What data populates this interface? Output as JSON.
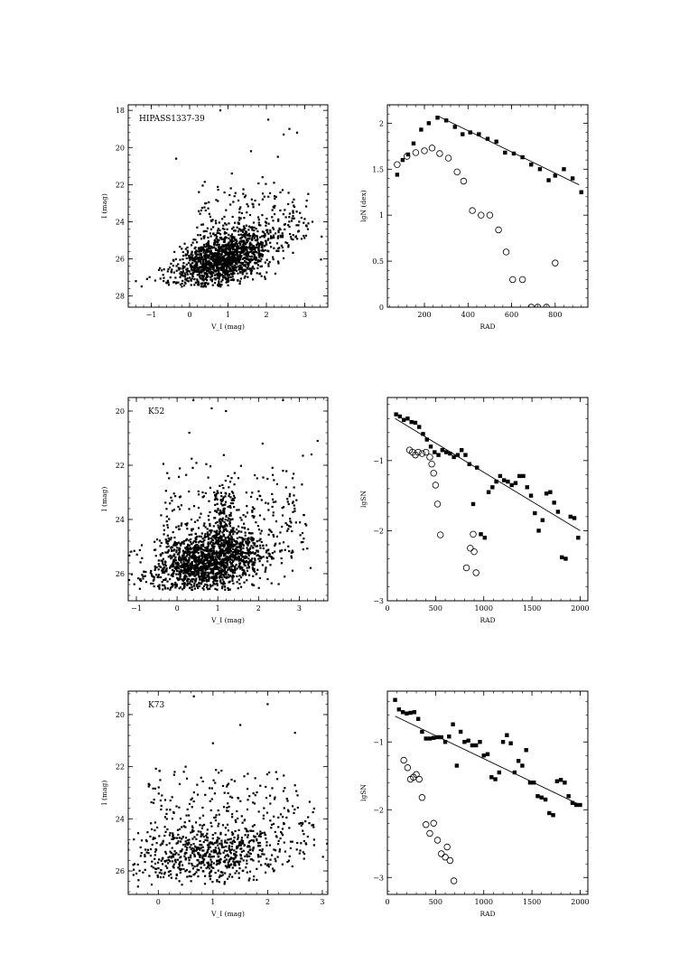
{
  "panels": [
    {
      "id": "cmd1",
      "type": "scatter",
      "subtype": "cmd",
      "label": "HIPASS1337-39",
      "xlabel": "V_I (mag)",
      "ylabel": "I (mag)",
      "xlim": [
        -1.6,
        3.6
      ],
      "ylim": [
        28.6,
        17.7
      ],
      "y_inverted": true,
      "xticks": [
        -1,
        0,
        1,
        2,
        3
      ],
      "yticks": [
        18,
        20,
        22,
        24,
        26,
        28
      ],
      "seed": 11,
      "n_points": 1400,
      "clump": {
        "cx": 0.9,
        "cy": 26.0,
        "sx": 0.55,
        "sy": 0.75,
        "ymin": 24.3,
        "ymax": 27.5,
        "tilt": 0.4
      },
      "spread": {
        "n": 220,
        "xmin": 0.2,
        "xmax": 3.1,
        "ymin": 21.8,
        "ymax": 25.0
      },
      "sparse": [
        [
          0.8,
          18.0
        ],
        [
          2.05,
          18.5
        ],
        [
          2.45,
          19.3
        ],
        [
          2.6,
          19.0
        ],
        [
          2.8,
          19.2
        ],
        [
          -0.35,
          20.6
        ],
        [
          1.6,
          20.2
        ],
        [
          2.3,
          20.5
        ],
        [
          1.1,
          21.4
        ],
        [
          1.9,
          21.6
        ],
        [
          2.2,
          21.9
        ],
        [
          -0.6,
          27.3
        ],
        [
          -0.5,
          27.0
        ],
        [
          -0.8,
          26.6
        ],
        [
          -1.4,
          27.2
        ],
        [
          3.2,
          24.0
        ]
      ]
    },
    {
      "id": "prof1",
      "type": "scatter",
      "subtype": "profile",
      "xlabel": "RAD",
      "ylabel": "lgN (dex)",
      "xlim": [
        30,
        950
      ],
      "ylim": [
        0,
        2.2
      ],
      "xticks": [
        200,
        400,
        600,
        800
      ],
      "yticks": [
        0,
        0.5,
        1,
        1.5,
        2
      ],
      "ytick_labels": [
        "0",
        "0.5",
        "1",
        "1.5",
        "2"
      ],
      "filled": [
        [
          75,
          1.44
        ],
        [
          100,
          1.6
        ],
        [
          125,
          1.66
        ],
        [
          150,
          1.78
        ],
        [
          185,
          1.93
        ],
        [
          220,
          2.0
        ],
        [
          260,
          2.06
        ],
        [
          300,
          2.03
        ],
        [
          340,
          1.96
        ],
        [
          375,
          1.88
        ],
        [
          410,
          1.9
        ],
        [
          450,
          1.88
        ],
        [
          490,
          1.83
        ],
        [
          530,
          1.8
        ],
        [
          570,
          1.68
        ],
        [
          610,
          1.67
        ],
        [
          650,
          1.63
        ],
        [
          690,
          1.55
        ],
        [
          730,
          1.5
        ],
        [
          770,
          1.38
        ],
        [
          800,
          1.43
        ],
        [
          840,
          1.5
        ],
        [
          880,
          1.4
        ],
        [
          920,
          1.25
        ]
      ],
      "open": [
        [
          75,
          1.55
        ],
        [
          120,
          1.64
        ],
        [
          160,
          1.68
        ],
        [
          200,
          1.7
        ],
        [
          235,
          1.73
        ],
        [
          270,
          1.67
        ],
        [
          310,
          1.62
        ],
        [
          350,
          1.47
        ],
        [
          380,
          1.37
        ],
        [
          420,
          1.05
        ],
        [
          460,
          1.0
        ],
        [
          500,
          1.0
        ],
        [
          540,
          0.84
        ],
        [
          575,
          0.6
        ],
        [
          605,
          0.3
        ],
        [
          650,
          0.3
        ],
        [
          690,
          0.0
        ],
        [
          720,
          0.0
        ],
        [
          760,
          0.0
        ],
        [
          800,
          0.48
        ]
      ],
      "fit": [
        [
          260,
          2.08
        ],
        [
          910,
          1.33
        ]
      ]
    },
    {
      "id": "cmd2",
      "type": "scatter",
      "subtype": "cmd",
      "label": "K52",
      "xlabel": "V_I (mag)",
      "ylabel": "I (mag)",
      "xlim": [
        -1.2,
        3.7
      ],
      "ylim": [
        27.0,
        19.5
      ],
      "y_inverted": true,
      "xticks": [
        -1,
        0,
        1,
        2,
        3
      ],
      "yticks": [
        20,
        22,
        24,
        26
      ],
      "seed": 29,
      "n_points": 1500,
      "clump": {
        "cx": 0.7,
        "cy": 25.6,
        "sx": 0.65,
        "sy": 0.6,
        "ymin": 24.2,
        "ymax": 26.6,
        "tilt": 0.3
      },
      "spread": {
        "n": 330,
        "xmin": -0.4,
        "xmax": 3.2,
        "ymin": 21.5,
        "ymax": 25.5
      },
      "vertical": {
        "n": 130,
        "xmin": 0.9,
        "xmax": 1.4,
        "ymin": 23.0,
        "ymax": 25.0
      },
      "sparse": [
        [
          0.4,
          19.6
        ],
        [
          0.85,
          19.9
        ],
        [
          1.2,
          20.0
        ],
        [
          2.6,
          19.6
        ],
        [
          3.45,
          21.1
        ],
        [
          3.3,
          21.6
        ],
        [
          -0.6,
          26.1
        ],
        [
          -0.9,
          26.2
        ],
        [
          0.3,
          20.8
        ],
        [
          2.1,
          21.2
        ]
      ]
    },
    {
      "id": "prof2",
      "type": "scatter",
      "subtype": "profile",
      "xlabel": "RAD",
      "ylabel": "lgSN",
      "xlim": [
        0,
        2080
      ],
      "ylim": [
        -3,
        -0.1
      ],
      "xticks": [
        0,
        500,
        1000,
        1500,
        2000
      ],
      "yticks": [
        -3,
        -2,
        -1
      ],
      "ytick_labels": [
        "−3",
        "−2",
        "−1"
      ],
      "filled": [
        [
          90,
          -0.34
        ],
        [
          130,
          -0.37
        ],
        [
          170,
          -0.42
        ],
        [
          210,
          -0.4
        ],
        [
          250,
          -0.45
        ],
        [
          290,
          -0.46
        ],
        [
          330,
          -0.52
        ],
        [
          370,
          -0.62
        ],
        [
          410,
          -0.7
        ],
        [
          450,
          -0.8
        ],
        [
          490,
          -0.88
        ],
        [
          530,
          -0.92
        ],
        [
          570,
          -0.85
        ],
        [
          610,
          -0.88
        ],
        [
          650,
          -0.9
        ],
        [
          690,
          -0.95
        ],
        [
          730,
          -0.92
        ],
        [
          770,
          -0.85
        ],
        [
          810,
          -0.92
        ],
        [
          850,
          -1.05
        ],
        [
          890,
          -1.62
        ],
        [
          930,
          -1.1
        ],
        [
          970,
          -2.05
        ],
        [
          1010,
          -2.1
        ],
        [
          1050,
          -1.45
        ],
        [
          1090,
          -1.38
        ],
        [
          1130,
          -1.3
        ],
        [
          1170,
          -1.22
        ],
        [
          1210,
          -1.28
        ],
        [
          1250,
          -1.3
        ],
        [
          1290,
          -1.35
        ],
        [
          1330,
          -1.32
        ],
        [
          1370,
          -1.22
        ],
        [
          1410,
          -1.22
        ],
        [
          1450,
          -1.38
        ],
        [
          1490,
          -1.5
        ],
        [
          1530,
          -1.75
        ],
        [
          1570,
          -2.0
        ],
        [
          1610,
          -1.85
        ],
        [
          1650,
          -1.47
        ],
        [
          1690,
          -1.45
        ],
        [
          1730,
          -1.6
        ],
        [
          1770,
          -1.73
        ],
        [
          1810,
          -2.38
        ],
        [
          1850,
          -2.4
        ],
        [
          1900,
          -1.8
        ],
        [
          1940,
          -1.82
        ],
        [
          1980,
          -2.1
        ]
      ],
      "open": [
        [
          230,
          -0.85
        ],
        [
          260,
          -0.88
        ],
        [
          290,
          -0.92
        ],
        [
          320,
          -0.88
        ],
        [
          360,
          -0.9
        ],
        [
          400,
          -0.88
        ],
        [
          440,
          -0.95
        ],
        [
          460,
          -1.05
        ],
        [
          480,
          -1.18
        ],
        [
          500,
          -1.35
        ],
        [
          520,
          -1.62
        ],
        [
          550,
          -2.06
        ],
        [
          820,
          -2.53
        ],
        [
          860,
          -2.25
        ],
        [
          890,
          -2.05
        ],
        [
          900,
          -2.3
        ],
        [
          920,
          -2.6
        ]
      ],
      "fit": [
        [
          80,
          -0.4
        ],
        [
          2000,
          -2.0
        ]
      ]
    },
    {
      "id": "cmd3",
      "type": "scatter",
      "subtype": "cmd",
      "label": "K73",
      "xlabel": "V_I (mag)",
      "ylabel": "I (mag)",
      "xlim": [
        -0.55,
        3.1
      ],
      "ylim": [
        26.9,
        19.1
      ],
      "y_inverted": true,
      "xticks": [
        0,
        1,
        2,
        3
      ],
      "yticks": [
        20,
        22,
        24,
        26
      ],
      "seed": 47,
      "n_points": 620,
      "clump": {
        "cx": 0.9,
        "cy": 25.4,
        "sx": 0.7,
        "sy": 0.55,
        "ymin": 24.1,
        "ymax": 26.6,
        "tilt": 0.3
      },
      "spread": {
        "n": 260,
        "xmin": -0.2,
        "xmax": 2.9,
        "ymin": 22.0,
        "ymax": 25.0
      },
      "sparse": [
        [
          0.65,
          19.3
        ],
        [
          2.0,
          19.6
        ],
        [
          1.0,
          21.1
        ],
        [
          1.5,
          20.4
        ],
        [
          2.5,
          20.7
        ],
        [
          0.3,
          22.2
        ],
        [
          0.5,
          22.0
        ],
        [
          2.85,
          24.8
        ],
        [
          -0.4,
          26.1
        ]
      ]
    },
    {
      "id": "prof3",
      "type": "scatter",
      "subtype": "profile",
      "xlabel": "RAD",
      "ylabel": "lgSN",
      "xlim": [
        0,
        2080
      ],
      "ylim": [
        -3.25,
        -0.25
      ],
      "xticks": [
        0,
        500,
        1000,
        1500,
        2000
      ],
      "yticks": [
        -3,
        -2,
        -1
      ],
      "ytick_labels": [
        "−3",
        "−2",
        "−1"
      ],
      "filled": [
        [
          80,
          -0.38
        ],
        [
          120,
          -0.52
        ],
        [
          160,
          -0.56
        ],
        [
          200,
          -0.58
        ],
        [
          240,
          -0.57
        ],
        [
          280,
          -0.56
        ],
        [
          320,
          -0.66
        ],
        [
          360,
          -0.85
        ],
        [
          400,
          -0.95
        ],
        [
          440,
          -0.95
        ],
        [
          480,
          -0.94
        ],
        [
          520,
          -0.93
        ],
        [
          560,
          -0.93
        ],
        [
          600,
          -1.0
        ],
        [
          640,
          -0.92
        ],
        [
          680,
          -0.74
        ],
        [
          720,
          -1.35
        ],
        [
          760,
          -0.85
        ],
        [
          800,
          -1.0
        ],
        [
          840,
          -0.98
        ],
        [
          880,
          -1.05
        ],
        [
          920,
          -1.05
        ],
        [
          960,
          -1.0
        ],
        [
          1000,
          -1.2
        ],
        [
          1040,
          -1.18
        ],
        [
          1080,
          -1.52
        ],
        [
          1120,
          -1.55
        ],
        [
          1160,
          -1.45
        ],
        [
          1200,
          -1.0
        ],
        [
          1240,
          -0.9
        ],
        [
          1280,
          -1.02
        ],
        [
          1320,
          -1.45
        ],
        [
          1360,
          -1.28
        ],
        [
          1400,
          -1.35
        ],
        [
          1440,
          -1.12
        ],
        [
          1480,
          -1.6
        ],
        [
          1520,
          -1.6
        ],
        [
          1560,
          -1.8
        ],
        [
          1600,
          -1.82
        ],
        [
          1640,
          -1.85
        ],
        [
          1680,
          -2.05
        ],
        [
          1720,
          -2.08
        ],
        [
          1760,
          -1.58
        ],
        [
          1800,
          -1.56
        ],
        [
          1840,
          -1.6
        ],
        [
          1880,
          -1.8
        ],
        [
          1920,
          -1.9
        ],
        [
          1960,
          -1.93
        ],
        [
          2000,
          -1.93
        ]
      ],
      "open": [
        [
          170,
          -1.27
        ],
        [
          210,
          -1.38
        ],
        [
          240,
          -1.55
        ],
        [
          270,
          -1.52
        ],
        [
          300,
          -1.48
        ],
        [
          330,
          -1.55
        ],
        [
          360,
          -1.82
        ],
        [
          400,
          -2.22
        ],
        [
          440,
          -2.35
        ],
        [
          480,
          -2.2
        ],
        [
          520,
          -2.45
        ],
        [
          560,
          -2.65
        ],
        [
          600,
          -2.7
        ],
        [
          620,
          -2.55
        ],
        [
          650,
          -2.75
        ],
        [
          690,
          -3.05
        ]
      ],
      "fit": [
        [
          80,
          -0.62
        ],
        [
          2000,
          -1.93
        ]
      ]
    }
  ]
}
